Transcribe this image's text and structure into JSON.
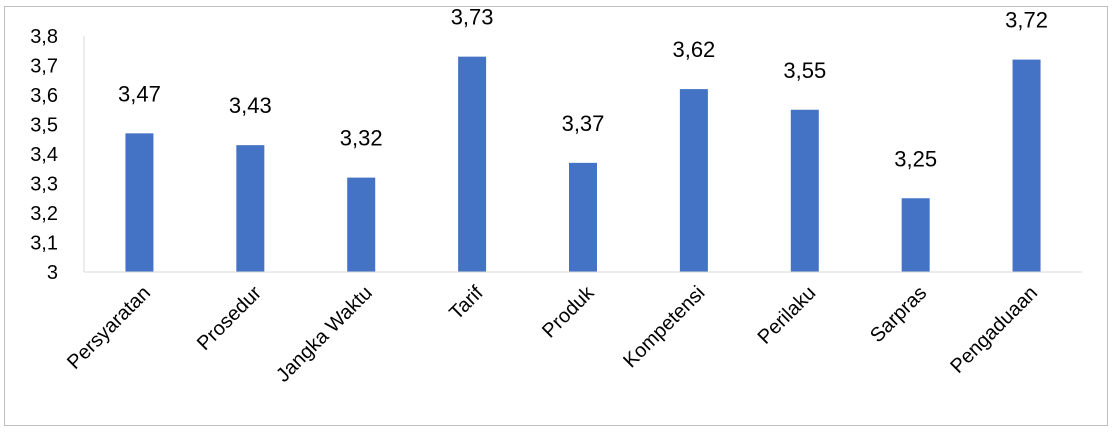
{
  "chart_data": {
    "type": "bar",
    "categories": [
      "Persyaratan",
      "Prosedur",
      "Jangka Waktu",
      "Tarif",
      "Produk",
      "Kompetensi",
      "Perilaku",
      "Sarpras",
      "Pengaduaan"
    ],
    "values": [
      3.47,
      3.43,
      3.32,
      3.73,
      3.37,
      3.62,
      3.55,
      3.25,
      3.72
    ],
    "data_labels": [
      "3,47",
      "3,43",
      "3,32",
      "3,73",
      "3,37",
      "3,62",
      "3,55",
      "3,25",
      "3,72"
    ],
    "ylim": [
      3,
      3.8
    ],
    "yticks": [
      3,
      3.1,
      3.2,
      3.3,
      3.4,
      3.5,
      3.6,
      3.7,
      3.8
    ],
    "ytick_labels": [
      "3",
      "3,1",
      "3,2",
      "3,3",
      "3,4",
      "3,5",
      "3,6",
      "3,7",
      "3,8"
    ],
    "title": "",
    "xlabel": "",
    "ylabel": "",
    "grid": false,
    "legend": "none",
    "bar_color": "#4472c4"
  }
}
